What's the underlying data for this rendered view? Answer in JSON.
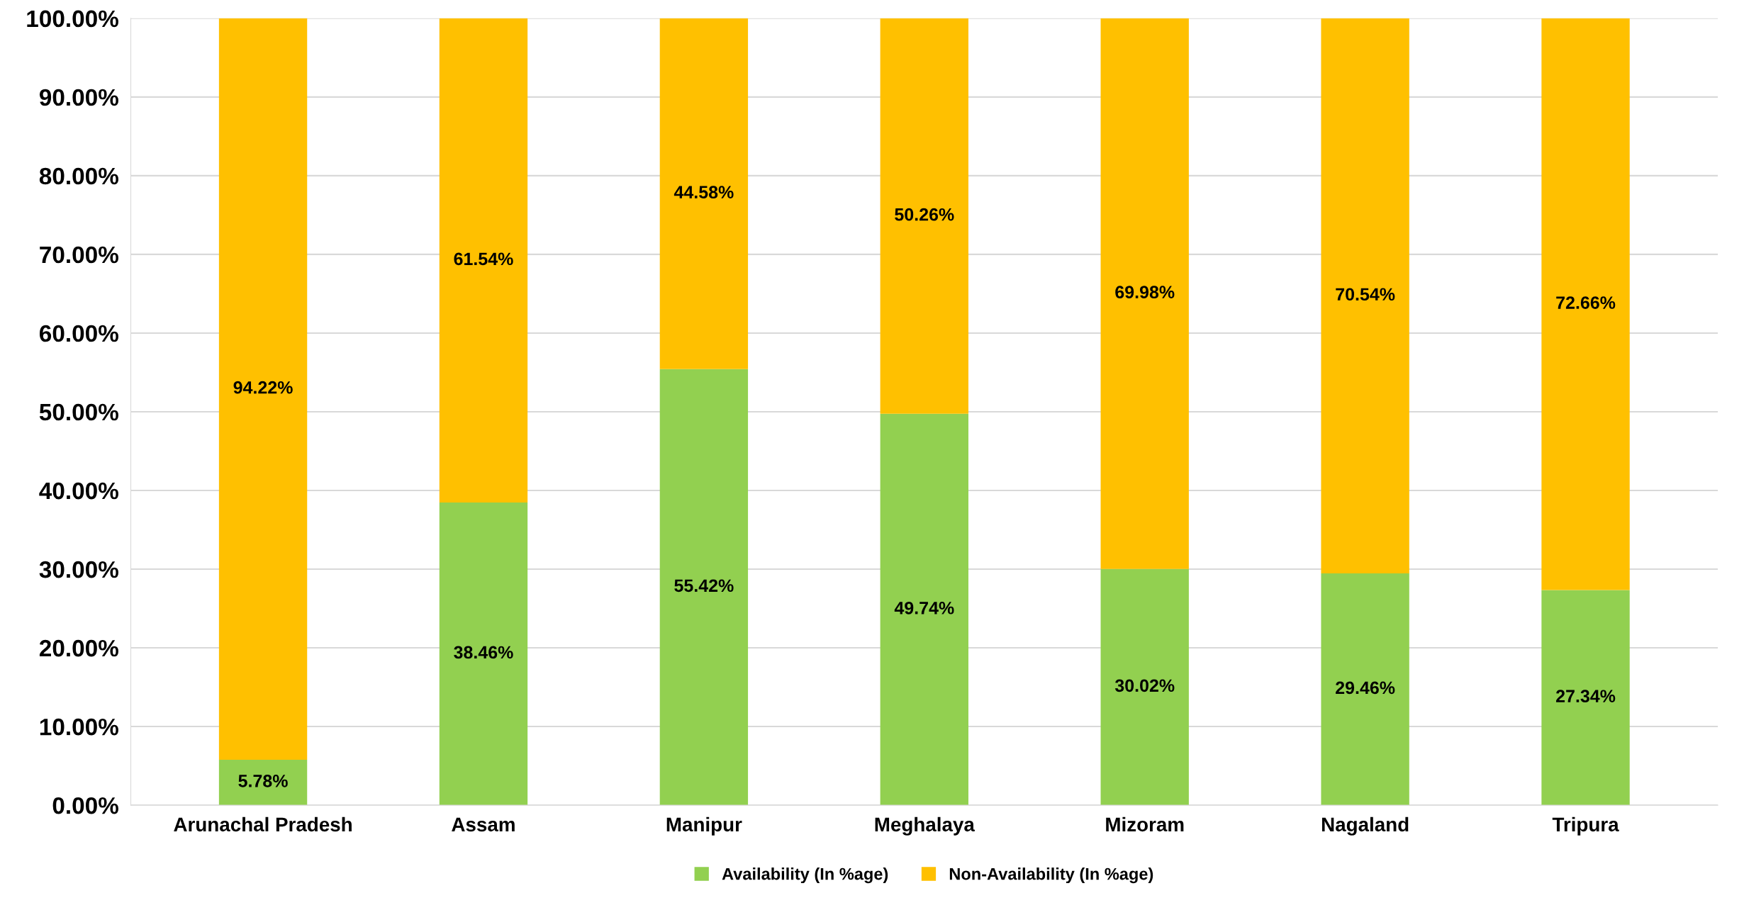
{
  "chart_data": {
    "type": "bar",
    "stacked": true,
    "categories": [
      "Arunachal Pradesh",
      "Assam",
      "Manipur",
      "Meghalaya",
      "Mizoram",
      "Nagaland",
      "Tripura"
    ],
    "series": [
      {
        "name": "Availability (In %age)",
        "color": "#92d050",
        "values": [
          5.78,
          38.46,
          55.42,
          49.74,
          30.02,
          29.46,
          27.34
        ],
        "value_labels": [
          "5.78%",
          "38.46%",
          "55.42%",
          "49.74%",
          "30.02%",
          "29.46%",
          "27.34%"
        ]
      },
      {
        "name": "Non-Availability (In %age)",
        "color": "#ffc000",
        "values": [
          94.22,
          61.54,
          44.58,
          50.26,
          69.98,
          70.54,
          72.66
        ],
        "value_labels": [
          "94.22%",
          "61.54%",
          "44.58%",
          "50.26%",
          "69.98%",
          "70.54%",
          "72.66%"
        ]
      }
    ],
    "ylim": [
      0,
      100
    ],
    "yticks": [
      {
        "value": 0,
        "label": "0.00%"
      },
      {
        "value": 10,
        "label": "10.00%"
      },
      {
        "value": 20,
        "label": "20.00%"
      },
      {
        "value": 30,
        "label": "30.00%"
      },
      {
        "value": 40,
        "label": "40.00%"
      },
      {
        "value": 50,
        "label": "50.00%"
      },
      {
        "value": 60,
        "label": "60.00%"
      },
      {
        "value": 70,
        "label": "70.00%"
      },
      {
        "value": 80,
        "label": "80.00%"
      },
      {
        "value": 90,
        "label": "90.00%"
      },
      {
        "value": 100,
        "label": "100.00%"
      }
    ],
    "grid": "y",
    "legend": "bottom"
  }
}
